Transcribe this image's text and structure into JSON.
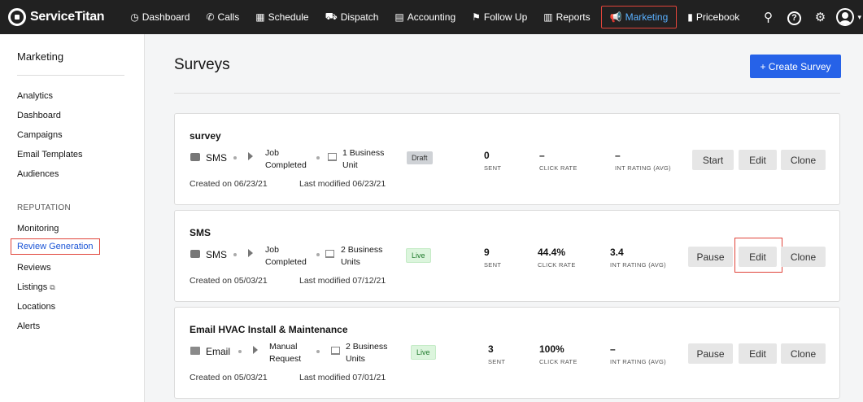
{
  "app": {
    "brand": "ServiceTitan"
  },
  "nav": {
    "items": [
      {
        "label": "Dashboard",
        "icon": "dashboard-icon"
      },
      {
        "label": "Calls",
        "icon": "phone-icon"
      },
      {
        "label": "Schedule",
        "icon": "calendar-icon"
      },
      {
        "label": "Dispatch",
        "icon": "truck-icon"
      },
      {
        "label": "Accounting",
        "icon": "ledger-icon"
      },
      {
        "label": "Follow Up",
        "icon": "flag-icon"
      },
      {
        "label": "Reports",
        "icon": "bar-chart-icon"
      },
      {
        "label": "Marketing",
        "icon": "megaphone-icon"
      },
      {
        "label": "Pricebook",
        "icon": "book-icon"
      }
    ],
    "active": "Marketing",
    "right_icons": [
      "search-icon",
      "help-icon",
      "gear-icon",
      "user-avatar-icon"
    ]
  },
  "sidebar": {
    "title": "Marketing",
    "items": [
      "Analytics",
      "Dashboard",
      "Campaigns",
      "Email Templates",
      "Audiences"
    ],
    "section": "REPUTATION",
    "reputation_items": [
      "Monitoring",
      "Review Generation",
      "Reviews",
      "Listings",
      "Locations",
      "Alerts"
    ],
    "active": "Review Generation"
  },
  "page": {
    "title": "Surveys",
    "create_button": "+ Create Survey"
  },
  "metric_labels": {
    "sent": "SENT",
    "click_rate": "CLICK RATE",
    "int_rating": "INT RATING (AVG)"
  },
  "surveys": [
    {
      "title": "survey",
      "channel": "SMS",
      "trigger_line1": "Job",
      "trigger_line2": "Completed",
      "bu_line1": "1 Business",
      "bu_line2": "Unit",
      "status": "Draft",
      "sent": "0",
      "click_rate": "–",
      "int_rating": "–",
      "actions": [
        "Start",
        "Edit",
        "Clone"
      ],
      "created": "Created on 06/23/21",
      "modified": "Last modified 06/23/21"
    },
    {
      "title": "SMS",
      "channel": "SMS",
      "trigger_line1": "Job",
      "trigger_line2": "Completed",
      "bu_line1": "2 Business",
      "bu_line2": "Units",
      "status": "Live",
      "sent": "9",
      "click_rate": "44.4%",
      "int_rating": "3.4",
      "actions": [
        "Pause",
        "Edit",
        "Clone"
      ],
      "created": "Created on 05/03/21",
      "modified": "Last modified 07/12/21"
    },
    {
      "title": "Email HVAC Install & Maintenance",
      "channel": "Email",
      "trigger_line1": "Manual",
      "trigger_line2": "Request",
      "bu_line1": "2 Business",
      "bu_line2": "Units",
      "status": "Live",
      "sent": "3",
      "click_rate": "100%",
      "int_rating": "–",
      "actions": [
        "Pause",
        "Edit",
        "Clone"
      ],
      "created": "Created on 05/03/21",
      "modified": "Last modified 07/01/21"
    }
  ],
  "colors": {
    "nav_bg": "#212121",
    "accent": "#2662e8",
    "active_link": "#1a54d6",
    "highlight": "#e0443a"
  }
}
